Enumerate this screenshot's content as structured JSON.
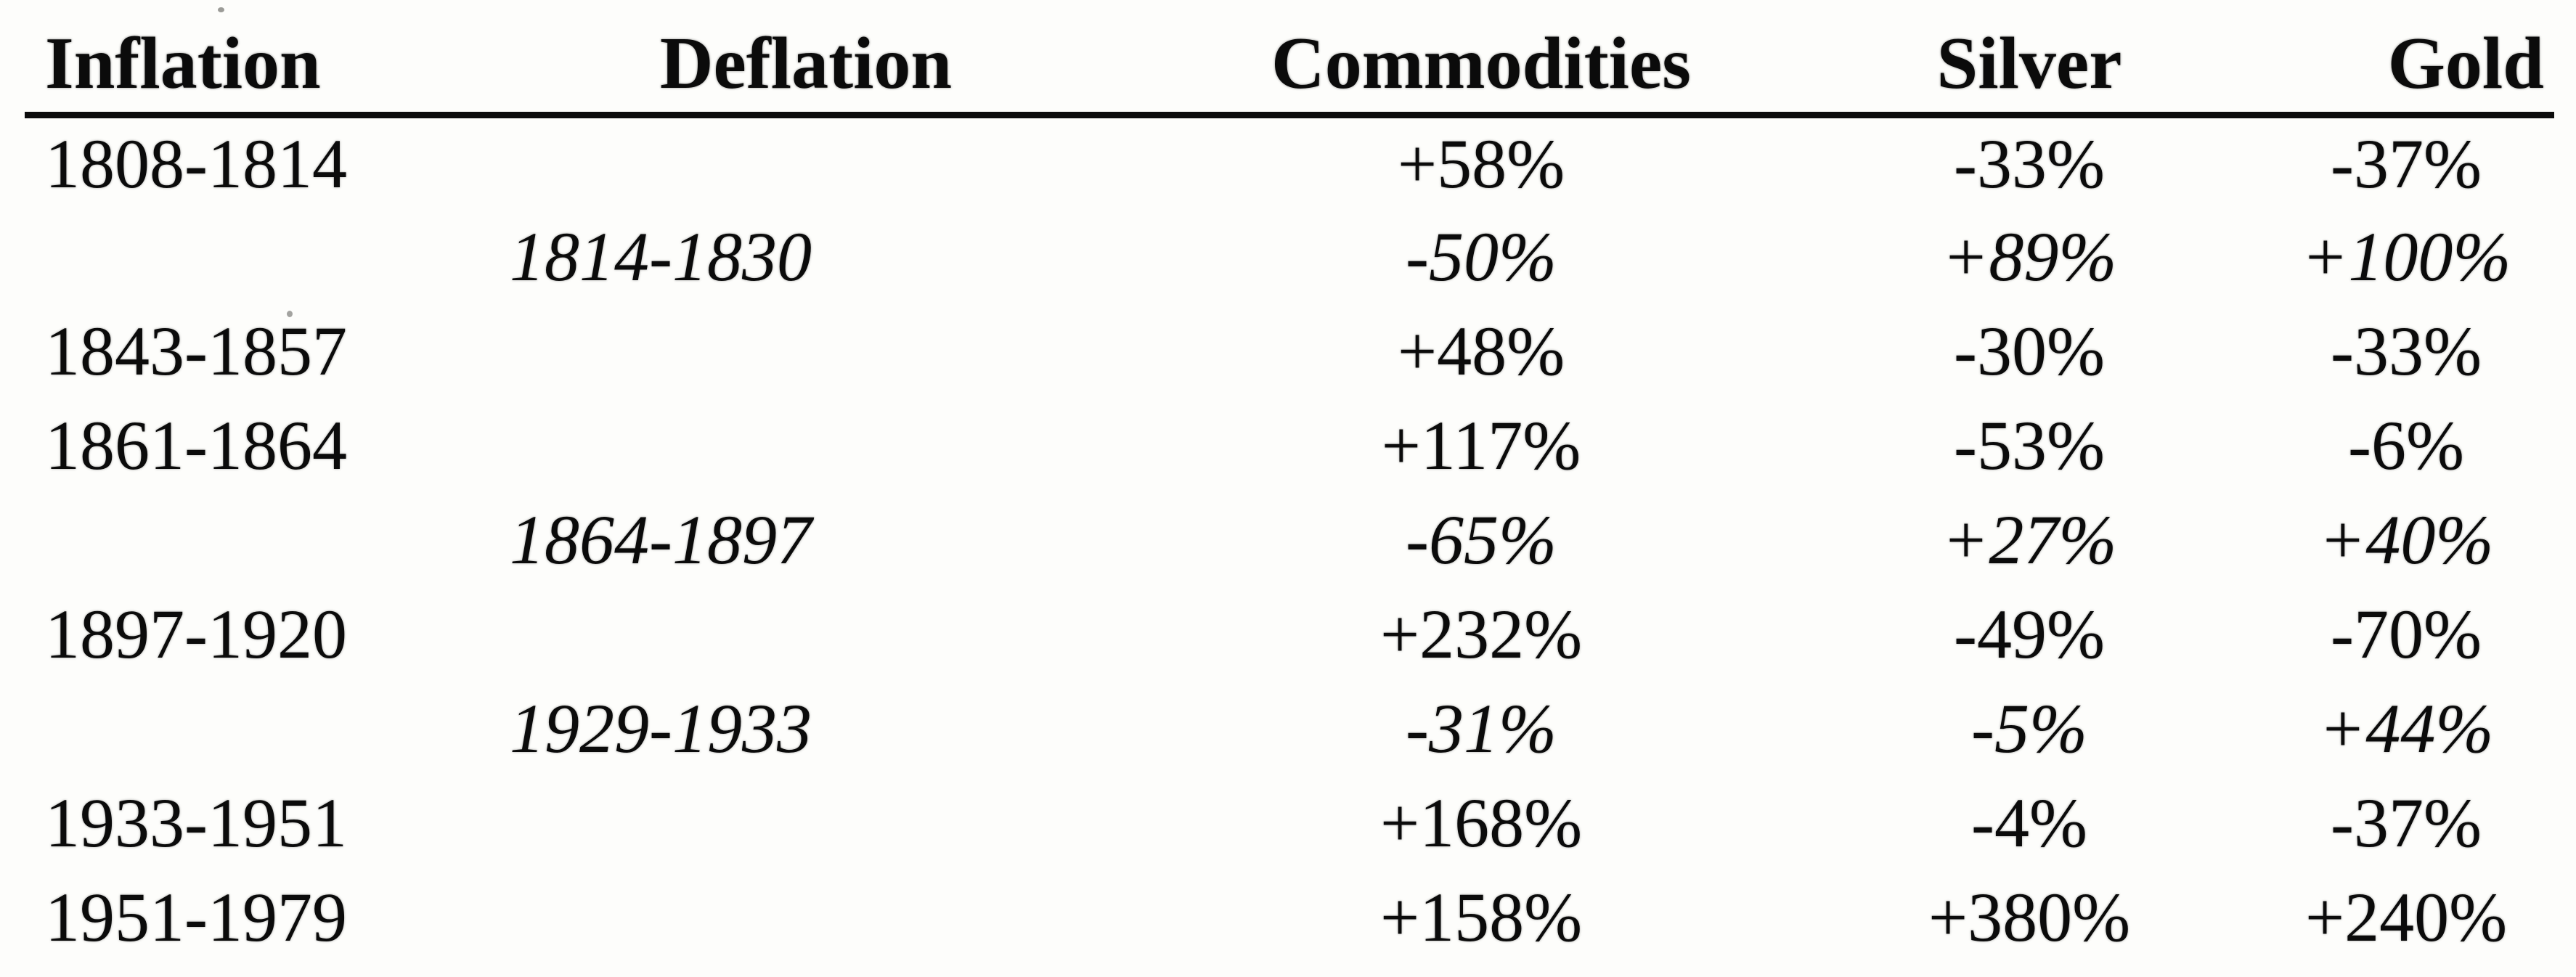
{
  "table": {
    "headers": [
      "Inflation",
      "Deflation",
      "Commodities",
      "Silver",
      "Gold"
    ],
    "rows": [
      {
        "type": "inflation",
        "cells": [
          "1808-1814",
          "",
          "+58%",
          "-33%",
          "-37%"
        ]
      },
      {
        "type": "deflation",
        "cells": [
          "",
          "1814-1830",
          "-50%",
          "+89%",
          "+100%"
        ]
      },
      {
        "type": "inflation",
        "cells": [
          "1843-1857",
          "",
          "+48%",
          "-30%",
          "-33%"
        ]
      },
      {
        "type": "inflation",
        "cells": [
          "1861-1864",
          "",
          "+117%",
          "-53%",
          "-6%"
        ]
      },
      {
        "type": "deflation",
        "cells": [
          "",
          "1864-1897",
          "-65%",
          "+27%",
          "+40%"
        ]
      },
      {
        "type": "inflation",
        "cells": [
          "1897-1920",
          "",
          "+232%",
          "-49%",
          "-70%"
        ]
      },
      {
        "type": "deflation",
        "cells": [
          "",
          "1929-1933",
          "-31%",
          "-5%",
          "+44%"
        ]
      },
      {
        "type": "inflation",
        "cells": [
          "1933-1951",
          "",
          "+168%",
          "-4%",
          "-37%"
        ]
      },
      {
        "type": "inflation",
        "cells": [
          "1951-1979",
          "",
          "+158%",
          "+380%",
          "+240%"
        ]
      }
    ]
  },
  "chart_data": {
    "type": "table",
    "columns": [
      "Inflation",
      "Deflation",
      "Commodities",
      "Silver",
      "Gold"
    ],
    "rows": [
      [
        "1808-1814",
        "",
        "+58%",
        "-33%",
        "-37%"
      ],
      [
        "",
        "1814-1830",
        "-50%",
        "+89%",
        "+100%"
      ],
      [
        "1843-1857",
        "",
        "+48%",
        "-30%",
        "-33%"
      ],
      [
        "1861-1864",
        "",
        "+117%",
        "-53%",
        "-6%"
      ],
      [
        "",
        "1864-1897",
        "-65%",
        "+27%",
        "+40%"
      ],
      [
        "1897-1920",
        "",
        "+232%",
        "-49%",
        "-70%"
      ],
      [
        "",
        "1929-1933",
        "-31%",
        "-5%",
        "+44%"
      ],
      [
        "1933-1951",
        "",
        "+168%",
        "-4%",
        "-37%"
      ],
      [
        "1951-1979",
        "",
        "+158%",
        "+380%",
        "+240%"
      ]
    ],
    "notes": "Inflation-period rows in roman type; deflation-period rows in italics. Values are percent changes for Commodities, Silver, Gold during each period."
  },
  "colors": {
    "ink": "#0b0b0b",
    "paper": "#fdfdfb"
  }
}
